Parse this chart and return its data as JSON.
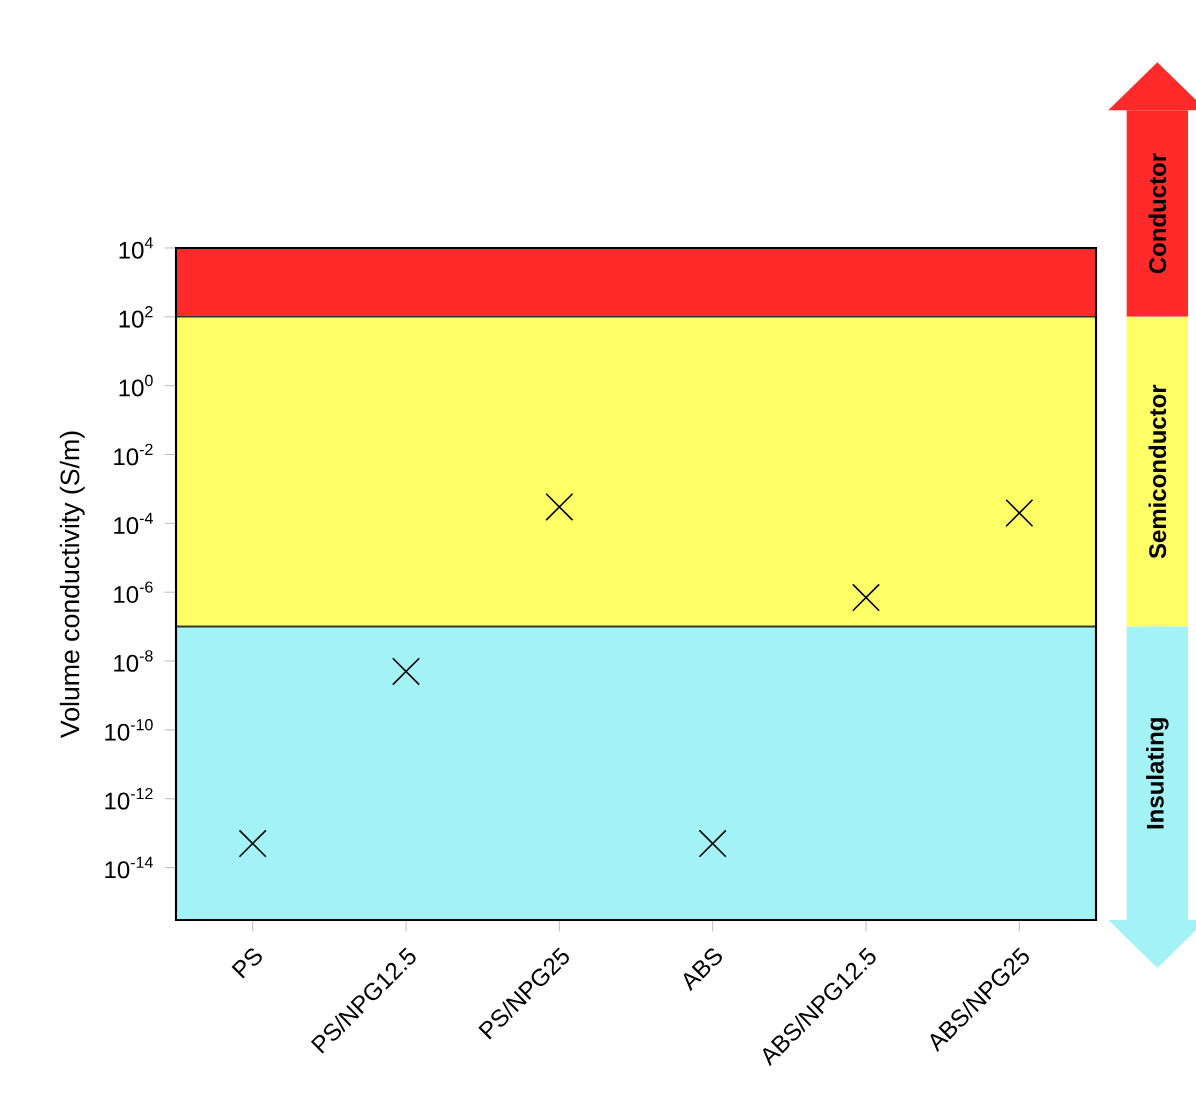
{
  "chart_data": {
    "type": "scatter",
    "ylabel": "Volume conductivity (S/m)",
    "categories": [
      "PS",
      "PS/NPG12.5",
      "PS/NPG25",
      "ABS",
      "ABS/NPG12.5",
      "ABS/NPG25"
    ],
    "series": [
      {
        "color": "#000000",
        "values": [
          5e-14,
          5e-09,
          0.0003,
          5e-14,
          7e-07,
          0.0002
        ]
      }
    ],
    "marker": "cross",
    "log": "y",
    "ylim": [
      3e-16,
      10000.0
    ],
    "yticks": [
      {
        "value": 1e-14,
        "label": "10$^{-14}$"
      },
      {
        "value": 1e-12,
        "label": "10$^{-12}$"
      },
      {
        "value": 1e-10,
        "label": "10$^{-10}$"
      },
      {
        "value": 1e-08,
        "label": "10$^{-8}$"
      },
      {
        "value": 1e-06,
        "label": "10$^{-6}$"
      },
      {
        "value": 0.0001,
        "label": "10$^{-4}$"
      },
      {
        "value": 0.01,
        "label": "10$^{-2}$"
      },
      {
        "value": 1,
        "label": "10$^{0}$"
      },
      {
        "value": 100,
        "label": "10$^{2}$"
      },
      {
        "value": 10000.0,
        "label": "10$^{4}$"
      }
    ],
    "bands": [
      {
        "axis": "y",
        "from": 100,
        "to": 10000.0,
        "label": "Conductor",
        "color": "#ff2b2b"
      },
      {
        "axis": "y",
        "from": 1e-07,
        "to": 100,
        "label": "Semiconductor",
        "color": "#ffff66"
      },
      {
        "axis": "y",
        "from": 3e-16,
        "to": 1e-07,
        "label": "Insulating",
        "color": "#a3f3f6"
      }
    ]
  }
}
